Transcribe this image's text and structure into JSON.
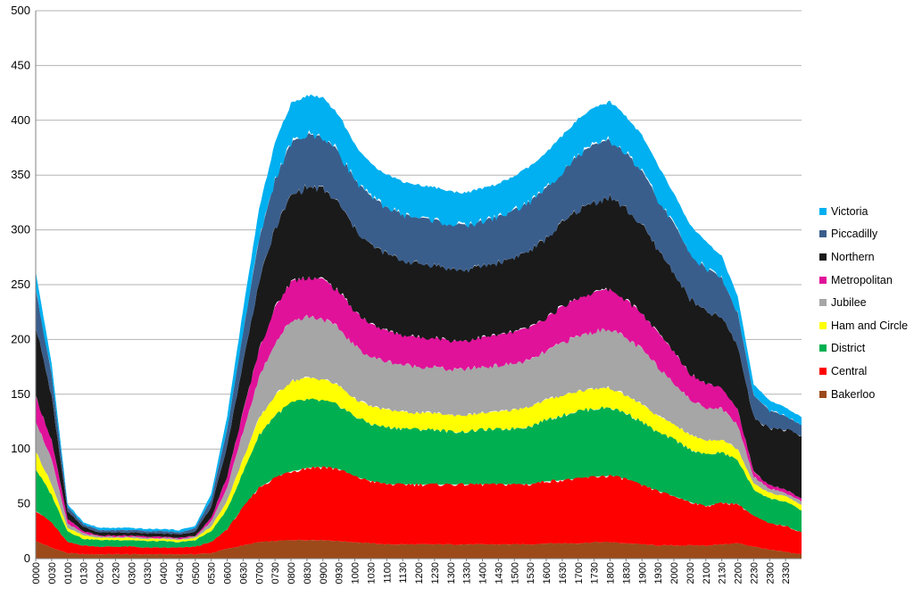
{
  "chart_data": {
    "type": "area",
    "stacked": true,
    "title": "",
    "xlabel": "",
    "ylabel": "",
    "ylim": [
      0,
      500
    ],
    "yticks": [
      0,
      50,
      100,
      150,
      200,
      250,
      300,
      350,
      400,
      450,
      500
    ],
    "grid": "horizontal",
    "legend_position": "right",
    "x_tick_labels": [
      "0000",
      "0030",
      "0100",
      "0130",
      "0200",
      "0230",
      "0300",
      "0330",
      "0400",
      "0430",
      "0500",
      "0530",
      "0600",
      "0630",
      "0700",
      "0730",
      "0800",
      "0830",
      "0900",
      "0930",
      "1000",
      "1030",
      "1100",
      "1130",
      "1200",
      "1230",
      "1300",
      "1330",
      "1400",
      "1430",
      "1500",
      "1530",
      "1600",
      "1630",
      "1700",
      "1730",
      "1800",
      "1830",
      "1900",
      "1930",
      "2000",
      "2030",
      "2100",
      "2130",
      "2200",
      "2230",
      "2300",
      "2330"
    ],
    "x": [
      "0000",
      "0030",
      "0100",
      "0130",
      "0200",
      "0230",
      "0300",
      "0330",
      "0400",
      "0430",
      "0500",
      "0530",
      "0600",
      "0630",
      "0700",
      "0730",
      "0800",
      "0830",
      "0900",
      "0930",
      "1000",
      "1030",
      "1100",
      "1130",
      "1200",
      "1230",
      "1300",
      "1330",
      "1400",
      "1430",
      "1500",
      "1530",
      "1600",
      "1630",
      "1700",
      "1730",
      "1800",
      "1830",
      "1900",
      "1930",
      "2000",
      "2030",
      "2100",
      "2130",
      "2200",
      "2230",
      "2300",
      "2330",
      "2355"
    ],
    "series": [
      {
        "name": "Bakerloo",
        "color": "#9C4A1A",
        "values": [
          16,
          10,
          5,
          4,
          4,
          4,
          4,
          4,
          4,
          4,
          4,
          5,
          9,
          12,
          15,
          16,
          17,
          17,
          17,
          16,
          15,
          14,
          13,
          13,
          13,
          13,
          13,
          13,
          13,
          13,
          13,
          13,
          14,
          14,
          14,
          15,
          15,
          14,
          13,
          12,
          12,
          12,
          12,
          13,
          14,
          11,
          8,
          6,
          4
        ]
      },
      {
        "name": "Central",
        "color": "#FF0000",
        "values": [
          28,
          23,
          10,
          8,
          7,
          7,
          7,
          6,
          6,
          6,
          7,
          10,
          18,
          35,
          50,
          58,
          63,
          66,
          67,
          66,
          60,
          57,
          55,
          55,
          55,
          55,
          55,
          55,
          55,
          55,
          55,
          55,
          57,
          58,
          59,
          60,
          61,
          59,
          54,
          50,
          45,
          40,
          36,
          38,
          36,
          28,
          24,
          24,
          20
        ]
      },
      {
        "name": "District",
        "color": "#00B050",
        "values": [
          38,
          25,
          10,
          6,
          6,
          6,
          6,
          6,
          6,
          5,
          6,
          10,
          18,
          32,
          48,
          57,
          62,
          62,
          60,
          58,
          55,
          52,
          52,
          51,
          50,
          50,
          48,
          48,
          50,
          50,
          51,
          53,
          56,
          59,
          62,
          62,
          62,
          60,
          58,
          53,
          52,
          48,
          47,
          46,
          40,
          24,
          23,
          22,
          20
        ]
      },
      {
        "name": "Ham and Circle",
        "color": "#FFFF00",
        "values": [
          16,
          10,
          3,
          3,
          2,
          2,
          2,
          2,
          2,
          2,
          2,
          4,
          8,
          12,
          15,
          18,
          20,
          20,
          20,
          18,
          16,
          16,
          16,
          15,
          15,
          15,
          15,
          15,
          15,
          16,
          17,
          18,
          18,
          18,
          18,
          18,
          18,
          16,
          16,
          15,
          14,
          13,
          13,
          12,
          10,
          6,
          5,
          5,
          5
        ]
      },
      {
        "name": "Jubilee",
        "color": "#A6A6A6",
        "values": [
          28,
          22,
          4,
          2,
          1,
          1,
          1,
          1,
          1,
          1,
          1,
          5,
          12,
          25,
          38,
          48,
          55,
          56,
          55,
          52,
          48,
          45,
          44,
          43,
          42,
          42,
          41,
          42,
          42,
          42,
          42,
          42,
          44,
          48,
          50,
          52,
          54,
          52,
          50,
          45,
          38,
          32,
          30,
          28,
          22,
          6,
          4,
          3,
          3
        ]
      },
      {
        "name": "Metropolitan",
        "color": "#E0129A",
        "values": [
          22,
          18,
          4,
          2,
          1,
          1,
          1,
          1,
          1,
          1,
          1,
          3,
          10,
          18,
          25,
          32,
          36,
          36,
          36,
          34,
          32,
          30,
          28,
          27,
          27,
          27,
          27,
          26,
          27,
          28,
          29,
          30,
          31,
          33,
          35,
          36,
          36,
          35,
          33,
          31,
          28,
          24,
          22,
          20,
          14,
          4,
          3,
          3,
          3
        ]
      },
      {
        "name": "Northern",
        "color": "#1A1A1A",
        "values": [
          65,
          40,
          7,
          4,
          3,
          3,
          3,
          3,
          3,
          3,
          4,
          10,
          28,
          45,
          62,
          72,
          78,
          82,
          82,
          80,
          75,
          72,
          70,
          68,
          67,
          66,
          65,
          64,
          65,
          66,
          68,
          70,
          72,
          76,
          80,
          82,
          84,
          83,
          80,
          76,
          72,
          68,
          65,
          63,
          58,
          50,
          52,
          55,
          57
        ]
      },
      {
        "name": "Piccadilly",
        "color": "#3A5E8C",
        "values": [
          33,
          20,
          4,
          2,
          2,
          2,
          2,
          2,
          2,
          2,
          3,
          7,
          15,
          28,
          38,
          45,
          48,
          48,
          48,
          47,
          45,
          44,
          43,
          42,
          42,
          41,
          41,
          41,
          41,
          42,
          43,
          45,
          46,
          48,
          50,
          52,
          52,
          51,
          49,
          46,
          44,
          42,
          40,
          36,
          30,
          20,
          16,
          12,
          10
        ]
      },
      {
        "name": "Victoria",
        "color": "#00B0F0",
        "values": [
          16,
          10,
          3,
          2,
          2,
          2,
          2,
          2,
          2,
          2,
          2,
          5,
          12,
          20,
          28,
          34,
          36,
          36,
          36,
          34,
          32,
          30,
          30,
          30,
          30,
          30,
          30,
          30,
          30,
          30,
          31,
          32,
          32,
          32,
          33,
          34,
          35,
          34,
          33,
          31,
          28,
          26,
          24,
          20,
          15,
          10,
          9,
          8,
          7
        ]
      }
    ]
  }
}
